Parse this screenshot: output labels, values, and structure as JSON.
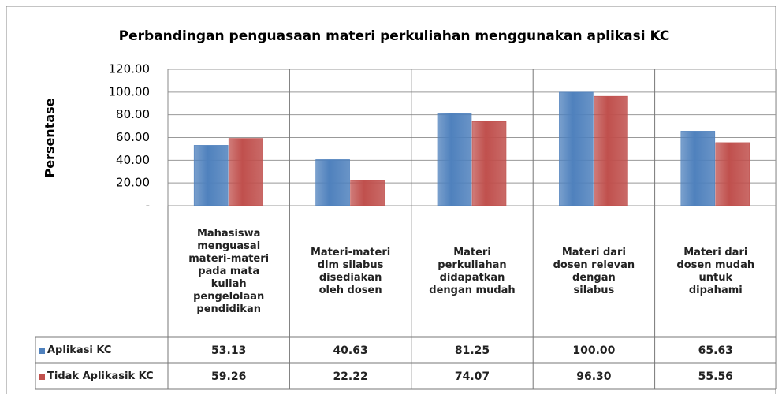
{
  "chart_data": {
    "type": "bar",
    "title": "Perbandingan penguasaan  materi perkuliahan menggunakan aplikasi KC",
    "y_label": "Persentase",
    "categories": [
      "Mahasiswa menguasai materi-materi pada mata kuliah pengelolaan pendidikan",
      "Materi-materi dlm silabus disediakan oleh dosen",
      "Materi perkuliahan didapatkan dengan mudah",
      "Materi dari dosen relevan dengan silabus",
      "Materi dari dosen mudah untuk dipahami"
    ],
    "series": [
      {
        "name": "Aplikasi KC",
        "color": "#4f81bd",
        "values": [
          53.13,
          40.63,
          81.25,
          100,
          65.63
        ],
        "value_labels": [
          "53.13",
          "40.63",
          "81.25",
          "100.00",
          "65.63"
        ]
      },
      {
        "name": "Tidak Aplikasik KC",
        "color": "#c0504d",
        "values": [
          59.26,
          22.22,
          74.07,
          96.3,
          55.56
        ],
        "value_labels": [
          "59.26",
          "22.22",
          "74.07",
          "96.30",
          "55.56"
        ]
      }
    ],
    "ylim": [
      0,
      120
    ],
    "yticks": [
      {
        "value": 0,
        "label": "-"
      },
      {
        "value": 20,
        "label": "20.00"
      },
      {
        "value": 40,
        "label": "40.00"
      },
      {
        "value": 60,
        "label": "60.00"
      },
      {
        "value": 80,
        "label": "80.00"
      },
      {
        "value": 100,
        "label": "100.00"
      },
      {
        "value": 120,
        "label": "120.00"
      }
    ],
    "grid": true
  }
}
